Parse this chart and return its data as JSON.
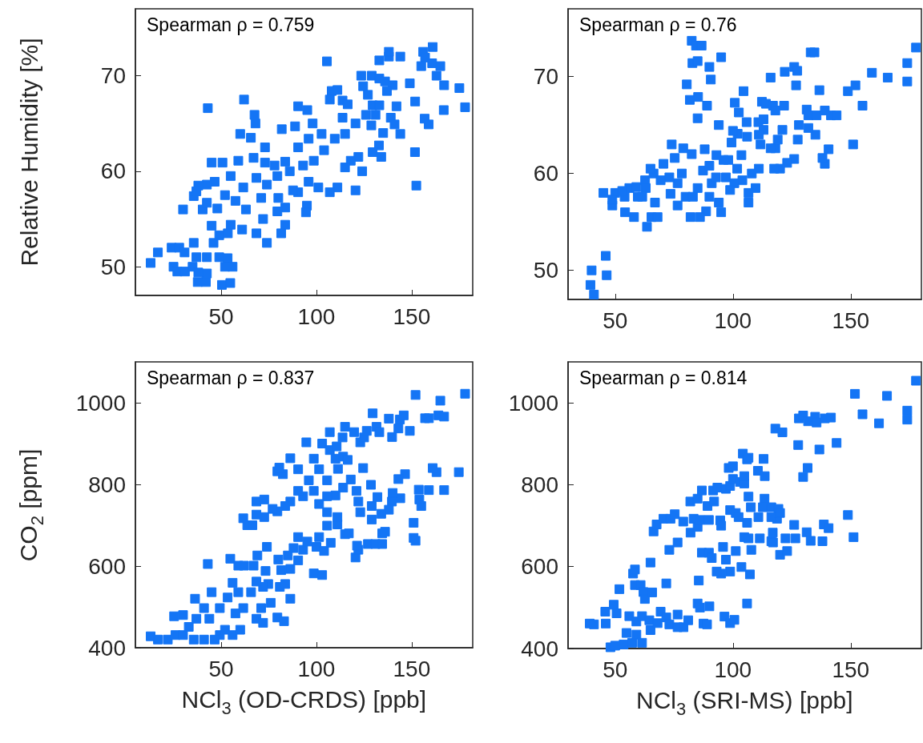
{
  "chart_data": [
    {
      "type": "scatter",
      "ylabel": "Relative Humidity [%]",
      "annotations": [
        "Spearman ρ = 0.759"
      ],
      "color": "#1475f5",
      "marker": "square",
      "xlim": [
        5,
        182
      ],
      "xticks": [
        50,
        100,
        150
      ],
      "ylim": [
        47,
        77
      ],
      "yticks": [
        50,
        60,
        70
      ],
      "x": [
        13,
        16.8,
        24,
        28,
        30.8,
        25,
        27,
        31,
        35,
        37.7,
        42,
        42.5,
        38,
        37,
        35.6,
        42.5,
        46,
        49,
        52,
        56,
        54.8,
        50.4,
        53.4,
        45,
        49,
        53.5,
        30,
        40.3,
        35.6,
        38,
        45,
        50.7,
        43,
        62,
        67.5,
        68,
        60,
        65.6,
        73,
        81.8,
        88.8,
        90.4,
        95.2,
        98,
        105.5,
        108,
        111,
        107,
        113.7,
        116.4,
        123.5,
        124.5,
        129,
        133,
        136,
        133,
        138,
        138,
        144,
        156,
        161,
        157,
        160.7,
        155,
        165,
        163,
        167,
        175,
        178,
        166.8,
        156.8,
        158.9,
        151.8,
        149,
        140,
        137,
        142,
        139,
        141,
        144,
        135,
        132.8,
        134,
        151.7,
        152.4,
        129.5,
        133,
        127,
        131,
        128.8,
        129.5,
        124,
        120.5,
        122,
        118,
        115,
        111,
        107,
        101,
        95.9,
        95,
        94.5,
        90.4,
        83.6,
        79.5,
        83.6,
        81.5,
        74,
        72,
        68.5,
        61,
        55,
        63,
        57.5,
        52,
        61.6,
        68.5,
        74,
        79.5,
        86,
        93,
        98.6,
        104,
        109.6,
        115,
        120.5,
        126,
        113.7,
        102.7,
        95.9,
        90.4,
        83.6,
        78,
        73,
        67,
        59,
        55,
        46.6,
        42.5,
        37,
        48,
        42.5,
        71,
        80,
        87.7
      ],
      "values": [
        50.4,
        51.5,
        52,
        52,
        51.5,
        50,
        49.5,
        49.5,
        50,
        48.4,
        48.4,
        49.3,
        49.4,
        51,
        52.5,
        51,
        52.5,
        51,
        50,
        50,
        48.3,
        48.1,
        50.9,
        54.3,
        53.3,
        53.5,
        56,
        56,
        57.4,
        58.5,
        60.9,
        60.9,
        66.6,
        67.5,
        65.9,
        65,
        63.9,
        63.5,
        62.5,
        64.4,
        64.7,
        66.8,
        66.4,
        65,
        71.5,
        68.4,
        68.5,
        67.5,
        67.4,
        67,
        70,
        68.9,
        70,
        69.7,
        69.4,
        71.6,
        72,
        72.5,
        72,
        72.5,
        73,
        71.9,
        71.3,
        71,
        71,
        70,
        69,
        68.7,
        66.7,
        66.4,
        65.5,
        64.9,
        67.3,
        69.2,
        69,
        68.4,
        66.8,
        65.6,
        64.9,
        63.9,
        64,
        62.7,
        61.5,
        62,
        58.5,
        66.9,
        66.9,
        68,
        65.9,
        64.8,
        62,
        60,
        58,
        61.5,
        61.1,
        60.4,
        58.3,
        57.8,
        58.3,
        58.9,
        56.4,
        55.7,
        57.8,
        56.2,
        55.8,
        54.4,
        53.5,
        52.5,
        55,
        53.5,
        53.9,
        54.4,
        56,
        56.9,
        57.5,
        58.3,
        59.3,
        58.6,
        59.5,
        60,
        60.6,
        61.1,
        62.2,
        63.4,
        63.9,
        65,
        65.9,
        65.6,
        63.9,
        63.4,
        62.5,
        61,
        60.6,
        60.9,
        61.4,
        61.1,
        59.5,
        58.9,
        58.6,
        57.9,
        56.1,
        56.7,
        57.2,
        57.2,
        58
      ]
    },
    {
      "type": "scatter",
      "annotations": [
        "Spearman ρ = 0.76"
      ],
      "color": "#1475f5",
      "marker": "square",
      "xlim": [
        30,
        180
      ],
      "xticks": [
        50,
        100,
        150
      ],
      "ylim": [
        47,
        77
      ],
      "yticks": [
        50,
        60,
        70
      ],
      "x": [
        39.5,
        41,
        40,
        46.4,
        46,
        45,
        50,
        48.8,
        54.2,
        58,
        56,
        59,
        62.7,
        61.5,
        63.5,
        65.4,
        68,
        66.9,
        66.3,
        70.5,
        74,
        75.3,
        78.9,
        80.4,
        82.5,
        84.3,
        86.7,
        82.8,
        85,
        90,
        90.6,
        95,
        81.7,
        85.2,
        89,
        85,
        94,
        100.8,
        102.5,
        104.5,
        105.8,
        110.8,
        113,
        112.3,
        114,
        117,
        121.7,
        118,
        116,
        122,
        126,
        127.3,
        126.8,
        133,
        134.6,
        136.7,
        131.3,
        132,
        135.5,
        139,
        141.6,
        144,
        148.8,
        152,
        155,
        159,
        165.7,
        174,
        174,
        177.7,
        151,
        140.6,
        139,
        138,
        135,
        132,
        128,
        127.5,
        126,
        123,
        120,
        117.5,
        118,
        121,
        119,
        116,
        113,
        111.7,
        111,
        109.6,
        111,
        108,
        106.6,
        106.6,
        106,
        102,
        100,
        99.4,
        98,
        100.6,
        98.8,
        97,
        96,
        93,
        95,
        94,
        91,
        88.6,
        86,
        82,
        79.9,
        85,
        87.3,
        90,
        88,
        82.5,
        78.3,
        76.5,
        76.5,
        73.5,
        73,
        69.3,
        65,
        63,
        59.6,
        54,
        53,
        48.8,
        83,
        90,
        92.8,
        101.8,
        103.6,
        104
      ],
      "values": [
        48.5,
        47.5,
        50,
        49.5,
        51.5,
        58,
        58,
        56.7,
        56,
        55.5,
        58.5,
        58.6,
        59.3,
        57.6,
        54.5,
        55.5,
        55.5,
        57,
        60,
        61,
        63,
        61.6,
        62.6,
        69.2,
        73.7,
        73.2,
        73.2,
        71.4,
        71.6,
        71,
        69.7,
        72,
        67.6,
        67.9,
        67,
        65.7,
        65,
        67.3,
        66.3,
        68.5,
        65.3,
        65.3,
        65.6,
        67.4,
        67.2,
        67,
        67,
        66.5,
        69.9,
        70.5,
        71,
        70.6,
        69.1,
        72.5,
        72.5,
        68.6,
        66.6,
        66,
        66,
        66.5,
        66,
        66,
        68.5,
        69.1,
        67,
        70.4,
        69.9,
        71.4,
        69.5,
        73,
        63,
        62.5,
        61,
        61.6,
        64,
        64.7,
        65,
        63.5,
        61.5,
        61.1,
        60.5,
        60.5,
        62.6,
        64.5,
        63.5,
        62.6,
        64.5,
        63,
        64,
        58.5,
        60.5,
        60,
        58,
        57,
        63.8,
        64.1,
        64.4,
        63.2,
        61.4,
        59,
        58.3,
        59.6,
        61.4,
        61.9,
        56,
        57,
        59,
        56.1,
        55.5,
        55.5,
        57.6,
        58.5,
        60.3,
        60.8,
        62.5,
        62,
        60,
        59,
        56.7,
        57.9,
        59.6,
        59.3,
        60.5,
        58.5,
        57.6,
        57.6,
        58.2,
        57.3,
        57.6,
        57.6,
        59.6,
        60.5,
        61.9,
        59.3
      ]
    },
    {
      "type": "scatter",
      "xlabel": "NCl$_{3}$ (OD-CRDS) [ppb]",
      "ylabel": "CO$_{2}$ [ppm]",
      "annotations": [
        "Spearman ρ = 0.837"
      ],
      "color": "#1475f5",
      "marker": "square",
      "xlim": [
        5,
        182
      ],
      "xticks": [
        50,
        100,
        150
      ],
      "ylim": [
        400,
        1100
      ],
      "yticks": [
        400,
        600,
        800,
        1000
      ],
      "x": [
        13,
        16.8,
        22,
        26,
        30,
        25.3,
        30,
        33,
        35.6,
        37,
        36.3,
        41,
        41,
        43.8,
        45,
        49.3,
        46.6,
        49.3,
        52,
        53.4,
        56,
        57.5,
        60,
        59,
        61.6,
        65.7,
        68.5,
        72,
        71,
        76,
        79.5,
        83,
        86.3,
        74.7,
        72,
        68.5,
        56,
        54.8,
        43,
        59,
        62,
        67,
        69,
        73.3,
        80.8,
        81.5,
        80,
        83.6,
        86.3,
        74,
        88,
        90.4,
        85,
        90.4,
        93,
        95.2,
        98.6,
        103,
        100,
        101.4,
        104,
        107.5,
        105.6,
        111,
        111,
        115,
        117,
        120.5,
        122,
        121.3,
        127,
        131,
        134.5,
        134.5,
        136,
        151,
        151,
        152,
        155,
        154,
        153.7,
        159,
        167,
        174.7,
        163,
        161,
        146.5,
        143,
        144,
        140,
        139.6,
        138,
        134,
        132,
        129,
        129,
        123,
        122,
        121,
        128.6,
        124.5,
        118,
        114,
        110,
        105.6,
        105.6,
        101.4,
        98.6,
        93,
        90.4,
        86.3,
        83.6,
        79.5,
        77,
        72.6,
        68.5,
        61.6,
        63.7,
        66.4,
        68.5,
        72.6,
        79.5,
        82.4,
        80.5,
        86.3,
        90.4,
        94.7,
        98.6,
        103,
        107,
        110.6,
        110,
        114,
        116.4,
        101.4,
        96,
        105.6,
        111.3,
        107,
        113.7,
        115,
        119.8,
        123,
        125,
        126.4,
        131.5,
        133,
        129.5,
        138,
        139.7,
        143,
        143.8,
        145.8,
        149,
        152,
        157,
        159,
        164,
        167,
        165,
        178
      ],
      "values": [
        428,
        420,
        420,
        431,
        431,
        477,
        480,
        451,
        420,
        471,
        520,
        420,
        497,
        471,
        536,
        431,
        420,
        497,
        444,
        523,
        431,
        484,
        444,
        536,
        497,
        536,
        471,
        461,
        497,
        510,
        474,
        465,
        520,
        556,
        549,
        562,
        559,
        618,
        605,
        601,
        601,
        601,
        626,
        588,
        549,
        590,
        616,
        556,
        593,
        647,
        644,
        671,
        626,
        614,
        640,
        660,
        582,
        578,
        647,
        671,
        637,
        657,
        699,
        702,
        720,
        678,
        680,
        621,
        640,
        650,
        654,
        654,
        654,
        680,
        684,
        706,
        669,
        662,
        747,
        763,
        787,
        786,
        786,
        830,
        830,
        840,
        825,
        813,
        766,
        779,
        758,
        738,
        728,
        769,
        747,
        714,
        732,
        758,
        784,
        799,
        840,
        812,
        792,
        773,
        732,
        771,
        752,
        784,
        771,
        784,
        758,
        747,
        734,
        740,
        720,
        726,
        717,
        700,
        700,
        758,
        763,
        832,
        825,
        841,
        864,
        837,
        903,
        863,
        900,
        884,
        893,
        863,
        868,
        860,
        837,
        810,
        810,
        838,
        928,
        915,
        941,
        928,
        903,
        915,
        931,
        941,
        928,
        974,
        961,
        916,
        937,
        959,
        969,
        931,
        1019,
        962,
        962,
        969,
        966,
        1005,
        1022
      ]
    },
    {
      "type": "scatter",
      "xlabel": "NCl$_{3}$ (SRI-MS) [ppb]",
      "annotations": [
        "Spearman ρ = 0.814"
      ],
      "color": "#1475f5",
      "marker": "square",
      "xlim": [
        30,
        180
      ],
      "xticks": [
        50,
        100,
        150
      ],
      "ylim": [
        400,
        1100
      ],
      "yticks": [
        400,
        600,
        800,
        1000
      ],
      "x": [
        39.2,
        41,
        46,
        45.8,
        49.4,
        50.6,
        48,
        50,
        53.6,
        54.8,
        57.2,
        59,
        61.4,
        56,
        59,
        61.4,
        65,
        64.5,
        68,
        69.3,
        71.7,
        73,
        76.5,
        76.5,
        79,
        81,
        51.8,
        58.4,
        60.8,
        62,
        62.6,
        65.7,
        57.6,
        58.4,
        65,
        71.7,
        73,
        76.5,
        66.3,
        67.6,
        70.5,
        73.5,
        75.3,
        78.9,
        82,
        85,
        83.3,
        86.1,
        89.8,
        94.6,
        95,
        81.9,
        85,
        86.8,
        89.2,
        92,
        91.6,
        93.4,
        97,
        98.8,
        100,
        103,
        104.8,
        104.8,
        98.2,
        100,
        104.2,
        106,
        106.6,
        113,
        110.6,
        113.5,
        106.6,
        113.4,
        98.8,
        101.2,
        102.4,
        106,
        107.6,
        110.8,
        112.7,
        116.3,
        119.3,
        118.7,
        116.3,
        120,
        116.9,
        104.8,
        106.6,
        111.4,
        116.3,
        117,
        120,
        122.3,
        123,
        126,
        126.5,
        131.3,
        133,
        138,
        138.6,
        140.6,
        148.8,
        151.2,
        107.8,
        107.2,
        103.6,
        98.8,
        95,
        93.1,
        85.5,
        86.8,
        89.8,
        91,
        95.8,
        97,
        101.2,
        106,
        85,
        86,
        90,
        87.5,
        89,
        96.4,
        98.8,
        100.6,
        118,
        121,
        127.7,
        129.8,
        131.7,
        136.7,
        144,
        128,
        129.8,
        131.9,
        134.9,
        135.5,
        139,
        141.6,
        151.8,
        155,
        162,
        165.4,
        174,
        174,
        177.7
      ],
      "values": [
        461,
        459,
        461,
        490,
        507,
        486,
        403,
        407,
        410,
        438,
        414,
        434,
        414,
        479,
        466,
        479,
        445,
        469,
        462,
        490,
        476,
        459,
        483,
        452,
        452,
        469,
        545,
        555,
        555,
        538,
        521,
        537,
        583,
        593,
        610,
        559,
        641,
        659,
        686,
        703,
        717,
        717,
        728,
        710,
        683,
        697,
        717,
        714,
        714,
        713,
        700,
        759,
        766,
        786,
        748,
        759,
        786,
        793,
        790,
        797,
        814,
        807,
        803,
        821,
        841,
        845,
        876,
        862,
        866,
        863,
        834,
        821,
        771,
        766,
        738,
        731,
        721,
        707,
        745,
        721,
        745,
        745,
        741,
        717,
        721,
        731,
        683,
        672,
        669,
        669,
        662,
        659,
        629,
        669,
        638,
        702,
        669,
        684,
        663,
        662,
        703,
        694,
        726,
        672,
        641,
        581,
        599,
        588,
        583,
        588,
        566,
        634,
        634,
        621,
        648,
        617,
        638,
        510,
        510,
        500,
        503,
        461,
        459,
        478,
        462,
        470,
        937,
        928,
        897,
        819,
        841,
        886,
        902,
        962,
        969,
        955,
        966,
        952,
        962,
        964,
        1022,
        972,
        950,
        1017,
        981,
        959,
        1054
      ]
    }
  ]
}
